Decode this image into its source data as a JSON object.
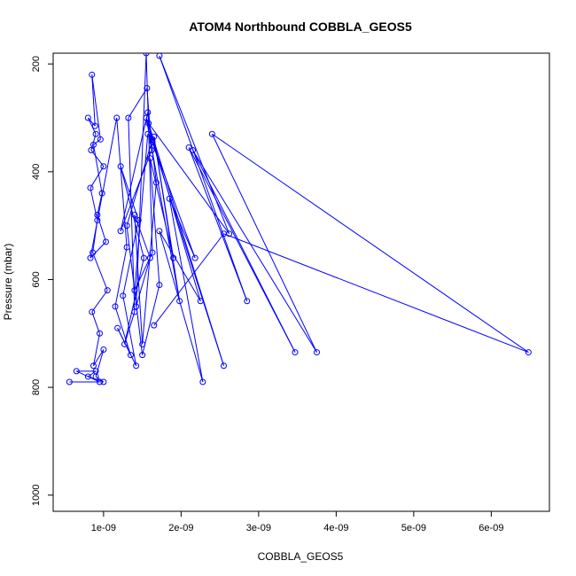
{
  "chart_data": {
    "type": "line",
    "title": "ATOM4 Northbound COBBLA_GEOS5",
    "xlabel": "COBBLA_GEOS5",
    "ylabel": "Pressure (mbar)",
    "x_ticks": [
      {
        "value": 1e-09,
        "label": "1e-09"
      },
      {
        "value": 2e-09,
        "label": "2e-09"
      },
      {
        "value": 3e-09,
        "label": "3e-09"
      },
      {
        "value": 4e-09,
        "label": "4e-09"
      },
      {
        "value": 5e-09,
        "label": "5e-09"
      },
      {
        "value": 6e-09,
        "label": "6e-09"
      }
    ],
    "y_ticks": [
      {
        "value": 200,
        "label": "200"
      },
      {
        "value": 400,
        "label": "400"
      },
      {
        "value": 600,
        "label": "600"
      },
      {
        "value": 800,
        "label": "800"
      },
      {
        "value": 1000,
        "label": "1000"
      }
    ],
    "xlim": [
      3.5e-10,
      6.75e-09
    ],
    "ylim": [
      1030,
      180
    ],
    "y_reversed": true,
    "grid": false,
    "series_color": "#0000ff",
    "series": [
      {
        "marker": "open-circle",
        "x": [
          5.6e-10,
          9.5e-10,
          6.5e-10,
          9e-10,
          8e-10,
          1e-09,
          9e-10,
          1e-09,
          8.7e-10,
          9.5e-10,
          8.5e-10,
          1.05e-09,
          8.6e-10,
          9.2e-10,
          8.3e-10,
          1e-09,
          8.4e-10,
          9e-10,
          8e-10,
          8.9e-10,
          8.5e-10,
          9.6e-10,
          8.7e-10,
          9.8e-10,
          9.2e-10,
          1.03e-09,
          8.3e-10,
          1.17e-09,
          1.3e-09,
          1.15e-09,
          1.35e-09,
          1.18e-09,
          1.42e-09,
          1.25e-09,
          1.45e-09,
          1.22e-09,
          1.52e-09,
          1.27e-09,
          1.4e-09,
          1.32e-09,
          1.56e-09,
          1.62e-09,
          1.22e-09,
          1.57e-09,
          1.68e-09,
          1.5e-09,
          1.4e-09,
          1.6e-09,
          1.42e-09,
          1.55e-09,
          1.63e-09,
          1.4e-09,
          1.57e-09,
          1.63e-09,
          1.3e-09,
          1.5e-09,
          1.72e-09,
          1.6e-09,
          1.9e-09,
          1.65e-09,
          1.98e-09,
          1.55e-09,
          2.25e-09,
          1.72e-09,
          2.28e-09,
          1.85e-09,
          2.18e-09,
          1.63e-09,
          2.55e-09,
          1.58e-09,
          2.62e-09,
          1.72e-09,
          2.85e-09,
          2.1e-09,
          3.47e-09,
          2.15e-09,
          3.75e-09,
          2.4e-09,
          6.48e-09,
          2.55e-09,
          1.65e-09
        ],
        "y": [
          790,
          790,
          770,
          770,
          780,
          790,
          780,
          730,
          760,
          700,
          660,
          620,
          550,
          490,
          430,
          390,
          360,
          330,
          300,
          315,
          220,
          340,
          350,
          440,
          480,
          530,
          560,
          300,
          540,
          650,
          740,
          690,
          760,
          630,
          490,
          390,
          560,
          720,
          660,
          300,
          245,
          360,
          510,
          290,
          420,
          720,
          480,
          560,
          650,
          180,
          550,
          620,
          330,
          340,
          500,
          740,
          610,
          375,
          560,
          335,
          640,
          300,
          640,
          510,
          790,
          450,
          560,
          345,
          760,
          310,
          515,
          185,
          640,
          355,
          735,
          360,
          735,
          330,
          735,
          515,
          685
        ]
      }
    ]
  }
}
